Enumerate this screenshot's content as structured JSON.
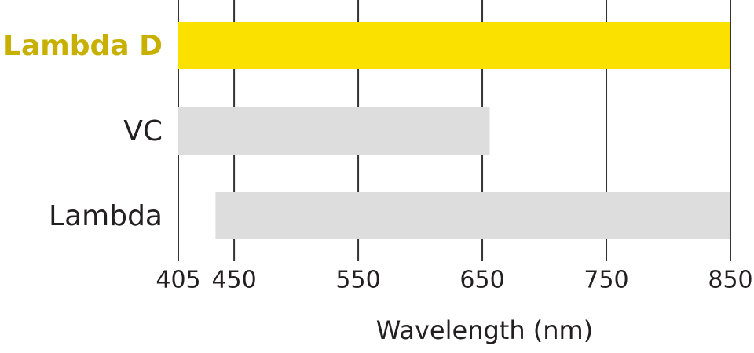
{
  "chart_data": {
    "type": "range-bar",
    "x_label": "Wavelength (nm)",
    "categories": [
      "Lambda D",
      "VC",
      "Lambda"
    ],
    "values": [
      [
        405,
        850
      ],
      [
        405,
        656
      ],
      [
        435,
        850
      ]
    ],
    "colors": [
      "#fae100",
      "#dddddd",
      "#dddddd"
    ],
    "label_colors": [
      "#c8b000",
      "#231f20",
      "#231f20"
    ],
    "label_bold": [
      true,
      false,
      false
    ],
    "xlim": [
      405,
      850
    ],
    "xticks": [
      405,
      450,
      550,
      650,
      750,
      850
    ],
    "grid": true
  }
}
